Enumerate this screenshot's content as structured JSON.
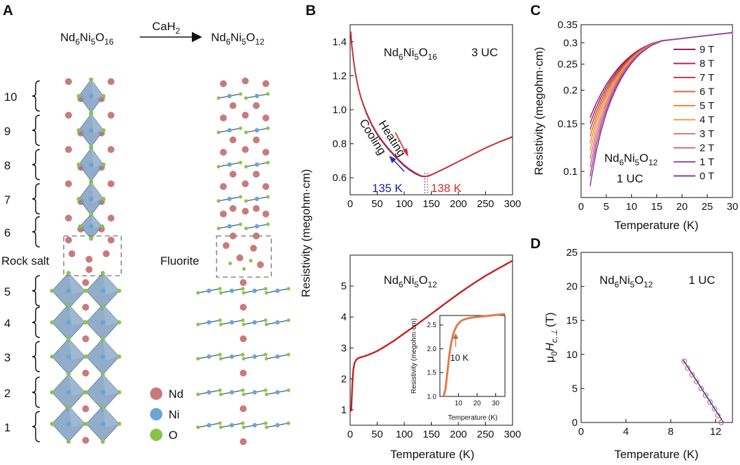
{
  "panels": {
    "A": "A",
    "B": "B",
    "C": "C",
    "D": "D"
  },
  "panel_a": {
    "formula_left": {
      "base": [
        "Nd",
        "Ni",
        "O"
      ],
      "subs": [
        "6",
        "5",
        "16"
      ]
    },
    "formula_right": {
      "base": [
        "Nd",
        "Ni",
        "O"
      ],
      "subs": [
        "6",
        "5",
        "12"
      ]
    },
    "reagent": {
      "base": "CaH",
      "sub": "2"
    },
    "layer_numbers": [
      "10",
      "9",
      "8",
      "7",
      "6",
      "5",
      "4",
      "3",
      "2",
      "1"
    ],
    "rock_salt_label": "Rock salt",
    "fluorite_label": "Fluorite",
    "legend": [
      {
        "label": "Nd",
        "color": "#c97a7a"
      },
      {
        "label": "Ni",
        "color": "#6aa6d6"
      },
      {
        "label": "O",
        "color": "#8ac34a"
      }
    ],
    "octahedron_color": "#7f9fbf"
  },
  "shared": {
    "ylabel_b": "Resistivity (megohm·cm)",
    "xlabel": "Temperature (K)"
  },
  "chart_data": [
    {
      "id": "B-top",
      "type": "line",
      "formula": {
        "base": [
          "Nd",
          "Ni",
          "O"
        ],
        "subs": [
          "6",
          "5",
          "16"
        ]
      },
      "thickness": "3 UC",
      "xlim": [
        0,
        300
      ],
      "ylim": [
        0.5,
        1.5
      ],
      "xticks": [
        0,
        50,
        100,
        150,
        200,
        250,
        300
      ],
      "yticks": [
        "0.6",
        "0.8",
        "1.0",
        "1.2",
        "1.4"
      ],
      "series": [
        {
          "name": "Cooling",
          "color": "#2b2bc0",
          "x": [
            1,
            3,
            6,
            10,
            15,
            20,
            30,
            40,
            50,
            60,
            70,
            80,
            90,
            100,
            110,
            120,
            130,
            135,
            140,
            150,
            175,
            200,
            225,
            250,
            275,
            300
          ],
          "y": [
            1.46,
            1.38,
            1.3,
            1.21,
            1.13,
            1.07,
            0.98,
            0.91,
            0.855,
            0.81,
            0.77,
            0.735,
            0.7,
            0.67,
            0.645,
            0.625,
            0.61,
            0.607,
            0.608,
            0.617,
            0.655,
            0.695,
            0.735,
            0.775,
            0.81,
            0.84
          ]
        },
        {
          "name": "Heating",
          "color": "#d42a2a",
          "x": [
            1,
            3,
            6,
            10,
            15,
            20,
            30,
            40,
            50,
            60,
            70,
            80,
            90,
            100,
            110,
            120,
            130,
            138,
            145,
            150,
            175,
            200,
            225,
            250,
            275,
            300
          ],
          "y": [
            1.46,
            1.38,
            1.3,
            1.21,
            1.13,
            1.07,
            0.985,
            0.915,
            0.86,
            0.815,
            0.775,
            0.74,
            0.705,
            0.675,
            0.65,
            0.63,
            0.613,
            0.607,
            0.61,
            0.617,
            0.655,
            0.695,
            0.735,
            0.775,
            0.81,
            0.842
          ]
        }
      ],
      "annotations": {
        "heating": "Heating",
        "cooling": "Cooling",
        "cool_temp": "135 K",
        "heat_temp": "138 K",
        "cool_color": "#1a1aa8",
        "heat_color": "#d42a2a"
      }
    },
    {
      "id": "B-bottom",
      "type": "line",
      "formula": {
        "base": [
          "Nd",
          "Ni",
          "O"
        ],
        "subs": [
          "6",
          "5",
          "12"
        ]
      },
      "xlim": [
        0,
        300
      ],
      "ylim": [
        0.5,
        6
      ],
      "xticks": [
        0,
        50,
        100,
        150,
        200,
        250,
        300
      ],
      "yticks": [
        "1",
        "2",
        "3",
        "4",
        "5"
      ],
      "series": [
        {
          "color": "#c81e1e",
          "x": [
            2,
            3,
            4,
            5,
            6,
            8,
            10,
            12,
            15,
            20,
            25,
            30,
            40,
            50,
            60,
            80,
            100,
            125,
            150,
            175,
            200,
            225,
            250,
            275,
            300
          ],
          "y": [
            0.95,
            1.4,
            1.8,
            2.1,
            2.3,
            2.5,
            2.58,
            2.63,
            2.67,
            2.7,
            2.72,
            2.75,
            2.82,
            2.9,
            3.0,
            3.22,
            3.47,
            3.78,
            4.1,
            4.43,
            4.75,
            5.05,
            5.33,
            5.58,
            5.82
          ]
        }
      ],
      "inset": {
        "xlim": [
          0,
          35
        ],
        "ylim": [
          1.0,
          2.7
        ],
        "xticks": [
          10,
          20,
          30
        ],
        "yticks": [
          "1.0",
          "1.5",
          "2.0",
          "2.5"
        ],
        "xlabel": "Temperature (K)",
        "ylabel": "Resistivity (megohm·cm)",
        "annotation": "10 K",
        "color": "#e07a4a",
        "x": [
          2,
          3,
          4,
          5,
          6,
          7,
          8,
          9,
          10,
          11,
          12,
          14,
          16,
          20,
          25,
          30,
          35
        ],
        "y": [
          1.0,
          1.15,
          1.5,
          1.85,
          2.1,
          2.28,
          2.4,
          2.48,
          2.53,
          2.57,
          2.6,
          2.63,
          2.65,
          2.67,
          2.69,
          2.71,
          2.73
        ]
      }
    },
    {
      "id": "C",
      "type": "line",
      "log_y": true,
      "formula": {
        "base": [
          "Nd",
          "Ni",
          "O"
        ],
        "subs": [
          "6",
          "5",
          "12"
        ]
      },
      "thickness": "1 UC",
      "ylabel": "Resistivity (megohm·cm)",
      "xlabel": "Temperature (K)",
      "xlim": [
        0,
        30
      ],
      "ylim": [
        0.08,
        0.35
      ],
      "xticks": [
        0,
        5,
        10,
        15,
        20,
        25,
        30
      ],
      "yticks": [
        0.1,
        0.15,
        0.2,
        0.25,
        0.3,
        0.35
      ],
      "ytick_labels": [
        "0.1",
        "0.15",
        "0.2",
        "0.25",
        "0.3",
        "0.35"
      ],
      "legend_labels": [
        "9 T",
        "8 T",
        "7 T",
        "6 T",
        "5 T",
        "4 T",
        "3 T",
        "2 T",
        "1 T",
        "0 T"
      ],
      "colors": [
        "#8a1f6a",
        "#b02050",
        "#c8403a",
        "#e06040",
        "#e88a3a",
        "#e8a040",
        "#e07870",
        "#c86888",
        "#a84a98",
        "#8a3aa8"
      ],
      "fields": [
        9,
        8,
        7,
        6,
        5,
        4,
        3,
        2,
        1,
        0
      ],
      "x": [
        1.8,
        2,
        3,
        4,
        5,
        6,
        7,
        8,
        9,
        10,
        11,
        12,
        14,
        16,
        18,
        20,
        25,
        30
      ]
    },
    {
      "id": "D",
      "type": "scatter",
      "formula": {
        "base": [
          "Nd",
          "Ni",
          "O"
        ],
        "subs": [
          "6",
          "5",
          "12"
        ]
      },
      "thickness": "1 UC",
      "ylabel": {
        "mu": "μ",
        "mu_sub": "0",
        "h": "H",
        "h_sub": "c,⊥",
        "unit": "(T)"
      },
      "xlabel": "Temperature (K)",
      "xlim": [
        0,
        13.5
      ],
      "ylim": [
        0,
        25
      ],
      "xticks": [
        0,
        4,
        8,
        12
      ],
      "yticks": [
        0,
        5,
        10,
        15,
        20,
        25
      ],
      "points": {
        "x": [
          9.2,
          9.5,
          9.9,
          10.3,
          10.7,
          11.1,
          11.5,
          11.9,
          12.2,
          12.5
        ],
        "y": [
          9,
          8,
          7,
          6,
          5,
          4,
          3,
          2,
          1,
          0
        ]
      },
      "fit": {
        "x": [
          9.1,
          12.7
        ],
        "y": [
          9.2,
          0
        ]
      },
      "point_color": "#c06a8a",
      "fit_color": "#1a1a7a"
    }
  ]
}
